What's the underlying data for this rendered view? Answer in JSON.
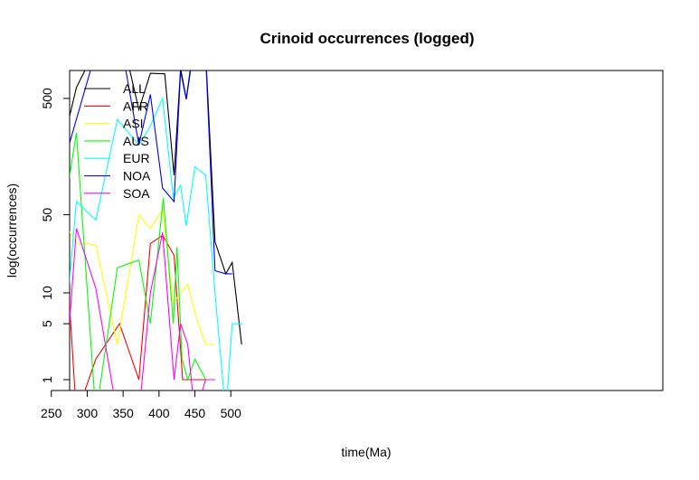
{
  "chart_data": {
    "type": "line",
    "title": "Crinoid occurrences (logged)",
    "xlabel": "time(Ma)",
    "ylabel": "log(occurrences)",
    "x_reversed": true,
    "xlim": [
      530,
      240
    ],
    "y_scale": "log1p",
    "ylim": [
      0,
      2000
    ],
    "xticks": [
      500,
      450,
      400,
      350,
      300,
      250
    ],
    "yticks": [
      1,
      5,
      10,
      50,
      500
    ],
    "legend_position": "top-left",
    "grid": false,
    "series": [
      {
        "name": "ALL",
        "color": "#000000",
        "points": [
          [
            515,
            3
          ],
          [
            502,
            19
          ],
          [
            493,
            15
          ],
          [
            478,
            29
          ],
          [
            465,
            1200
          ],
          [
            450,
            1700
          ],
          [
            438,
            500
          ],
          [
            430,
            900
          ],
          [
            421,
            110
          ],
          [
            408,
            810
          ],
          [
            388,
            820
          ],
          [
            372,
            400
          ],
          [
            342,
            2500
          ],
          [
            312,
            1330
          ],
          [
            285,
            620
          ],
          [
            266,
            200
          ],
          [
            255,
            60
          ],
          [
            250,
            42
          ],
          [
            243,
            200
          ],
          [
            239,
            200
          ]
        ]
      },
      {
        "name": "AFR",
        "color": "#ff0000",
        "points": [
          [
            478,
            1
          ],
          [
            465,
            1
          ],
          [
            443,
            1
          ],
          [
            433,
            1
          ],
          [
            421,
            22
          ],
          [
            405,
            33
          ],
          [
            388,
            28
          ],
          [
            372,
            1
          ],
          [
            345,
            5
          ],
          [
            312,
            2
          ],
          [
            285,
            0
          ],
          [
            272,
            18
          ],
          [
            262,
            0
          ],
          [
            255,
            0
          ],
          [
            250,
            0
          ],
          [
            239,
            0
          ]
        ]
      },
      {
        "name": "ASI",
        "color": "#ffff00",
        "points": [
          [
            478,
            3
          ],
          [
            465,
            3
          ],
          [
            451,
            6
          ],
          [
            440,
            12
          ],
          [
            430,
            10
          ],
          [
            420,
            8
          ],
          [
            405,
            55
          ],
          [
            388,
            38
          ],
          [
            372,
            50
          ],
          [
            342,
            3
          ],
          [
            312,
            27
          ],
          [
            300,
            28
          ],
          [
            285,
            28
          ],
          [
            266,
            45
          ],
          [
            255,
            40
          ],
          [
            250,
            6
          ],
          [
            243,
            110
          ],
          [
            239,
            90
          ]
        ]
      },
      {
        "name": "AUS",
        "color": "#00ff00",
        "points": [
          [
            478,
            1
          ],
          [
            465,
            1
          ],
          [
            450,
            2
          ],
          [
            440,
            1
          ],
          [
            432,
            2
          ],
          [
            425,
            26
          ],
          [
            420,
            5
          ],
          [
            406,
            70
          ],
          [
            388,
            5
          ],
          [
            372,
            20
          ],
          [
            342,
            17
          ],
          [
            312,
            0
          ],
          [
            285,
            255
          ],
          [
            266,
            45
          ],
          [
            255,
            5
          ],
          [
            250,
            0
          ],
          [
            240,
            0
          ],
          [
            239,
            1
          ]
        ]
      },
      {
        "name": "EUR",
        "color": "#00ffff",
        "points": [
          [
            516,
            5
          ],
          [
            502,
            5
          ],
          [
            493,
            0
          ],
          [
            478,
            10
          ],
          [
            465,
            110
          ],
          [
            450,
            130
          ],
          [
            438,
            40
          ],
          [
            430,
            90
          ],
          [
            420,
            70
          ],
          [
            405,
            500
          ],
          [
            388,
            290
          ],
          [
            372,
            200
          ],
          [
            342,
            330
          ],
          [
            312,
            45
          ],
          [
            285,
            65
          ],
          [
            266,
            2
          ],
          [
            258,
            25
          ],
          [
            250,
            4
          ],
          [
            243,
            110
          ],
          [
            239,
            120
          ]
        ]
      },
      {
        "name": "NOA",
        "color": "#0000ff",
        "points": [
          [
            502,
            15
          ],
          [
            493,
            15
          ],
          [
            478,
            16
          ],
          [
            465,
            1130
          ],
          [
            450,
            1540
          ],
          [
            438,
            490
          ],
          [
            430,
            850
          ],
          [
            421,
            65
          ],
          [
            405,
            85
          ],
          [
            388,
            540
          ],
          [
            372,
            200
          ],
          [
            342,
            2250
          ],
          [
            312,
            1250
          ],
          [
            266,
            130
          ],
          [
            257,
            4
          ],
          [
            250,
            46
          ],
          [
            243,
            9
          ],
          [
            239,
            11
          ]
        ]
      },
      {
        "name": "SOA",
        "color": "#ff00ff",
        "points": [
          [
            478,
            1
          ],
          [
            465,
            1
          ],
          [
            450,
            0
          ],
          [
            440,
            3
          ],
          [
            430,
            5
          ],
          [
            421,
            1
          ],
          [
            405,
            35
          ],
          [
            388,
            10
          ],
          [
            372,
            0
          ],
          [
            342,
            0
          ],
          [
            312,
            11
          ],
          [
            285,
            38
          ],
          [
            266,
            0
          ],
          [
            255,
            0
          ],
          [
            243,
            0
          ],
          [
            239,
            1
          ]
        ]
      }
    ]
  }
}
